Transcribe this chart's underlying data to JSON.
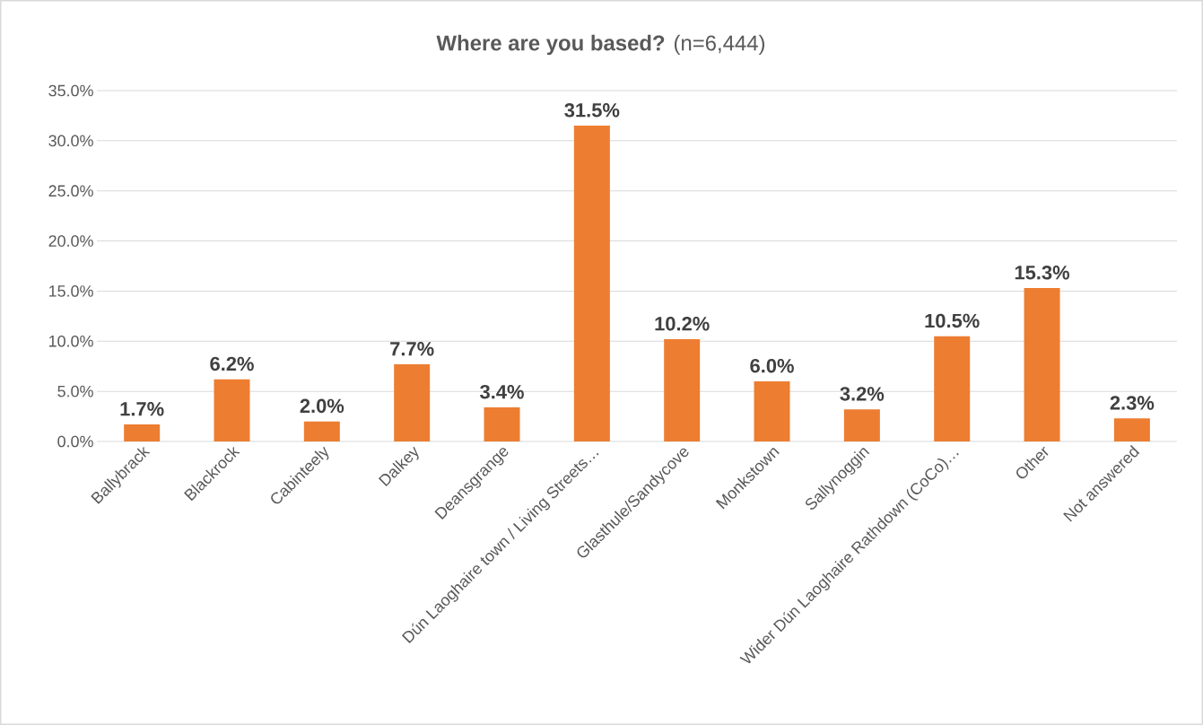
{
  "chart_data": {
    "type": "bar",
    "title": "**Where are you based?** (n=6,444)",
    "categories": [
      "Ballybrack",
      "Blackrock",
      "Cabinteely",
      "Dalkey",
      "Deansgrange",
      "Dún Laoghaire town / Living Streets…",
      "Glasthule/Sandycove",
      "Monkstown",
      "Sallynoggin",
      "Wider Dún Laoghaire Rathdown (CoCo)…",
      "Other",
      "Not answered"
    ],
    "values": [
      1.7,
      6.2,
      2.0,
      7.7,
      3.4,
      31.5,
      10.2,
      6.0,
      3.2,
      10.5,
      15.3,
      2.3
    ],
    "value_labels": [
      "1.7%",
      "6.2%",
      "2.0%",
      "7.7%",
      "3.4%",
      "31.5%",
      "10.2%",
      "6.0%",
      "3.2%",
      "10.5%",
      "15.3%",
      "2.3%"
    ],
    "color": "#ed7d31",
    "ylim": [
      0,
      35
    ],
    "yticks": [
      {
        "value": 0,
        "label": "0.0%"
      },
      {
        "value": 5,
        "label": "5.0%"
      },
      {
        "value": 10,
        "label": "10.0%"
      },
      {
        "value": 15,
        "label": "15.0%"
      },
      {
        "value": 20,
        "label": "20.0%"
      },
      {
        "value": 25,
        "label": "25.0%"
      },
      {
        "value": 30,
        "label": "30.0%"
      },
      {
        "value": 35,
        "label": "35.0%"
      }
    ],
    "grid": "y"
  }
}
